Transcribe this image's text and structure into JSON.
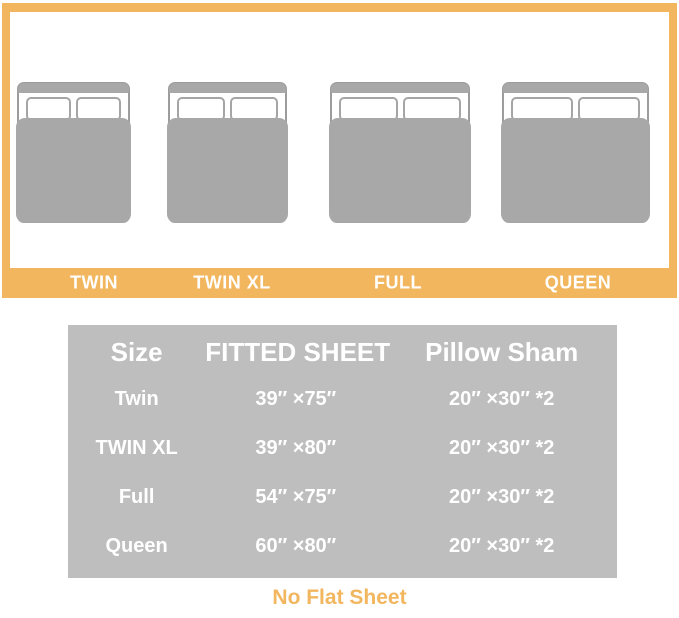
{
  "colors": {
    "accent_orange": "#F2B65F",
    "bed_gray": "#A8A8A8",
    "table_gray": "#BEBEBE",
    "text_white": "#FFFFFF"
  },
  "bed_diagram": {
    "labels": [
      "TWIN",
      "TWIN XL",
      "FULL",
      "QUEEN"
    ]
  },
  "size_table": {
    "headers": [
      "Size",
      "FITTED SHEET",
      "Pillow Sham"
    ],
    "rows": [
      {
        "size": "Twin",
        "fitted_sheet": "39″ ×75″",
        "pillow_sham": "20″ ×30″ *2"
      },
      {
        "size": "TWIN XL",
        "fitted_sheet": "39″ ×80″",
        "pillow_sham": "20″ ×30″ *2"
      },
      {
        "size": "Full",
        "fitted_sheet": "54″ ×75″",
        "pillow_sham": "20″ ×30″ *2"
      },
      {
        "size": "Queen",
        "fitted_sheet": "60″ ×80″",
        "pillow_sham": "20″ ×30″ *2"
      }
    ]
  },
  "footnote": "No Flat Sheet"
}
